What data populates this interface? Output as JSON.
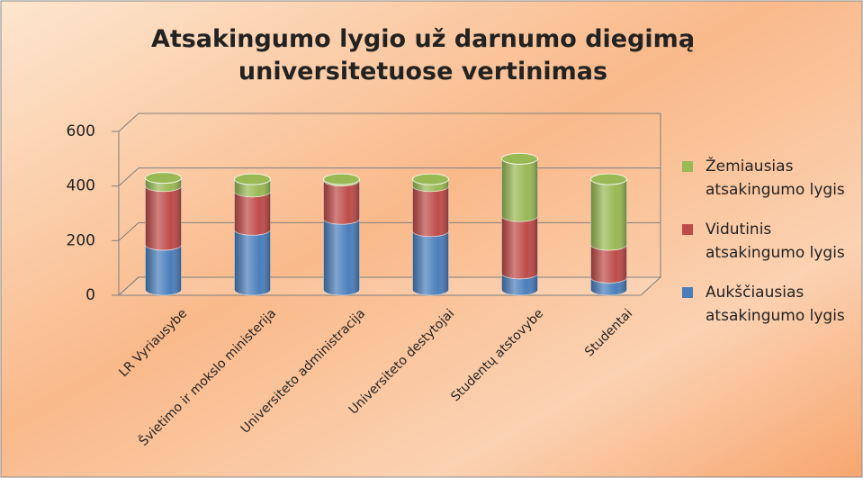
{
  "chart_data": {
    "type": "bar3d_stacked",
    "title": "Atsakingumo lygio už darnumo diegimą universitetuose vertinimas",
    "categories": [
      "LR Vyriausybe",
      "Švietimo ir mokslo ministerija",
      "Universiteto administracija",
      "Universiteto destytojai",
      "Studentų atstovybe",
      "Studentai"
    ],
    "series": [
      {
        "name": "Aukščiausias atsakingumo lygis",
        "color": "#4a7ebb",
        "values": [
          165,
          220,
          260,
          215,
          60,
          45
        ]
      },
      {
        "name": "Vidutinis atsakingumo lygis",
        "color": "#be4b48",
        "values": [
          215,
          140,
          140,
          165,
          210,
          120
        ]
      },
      {
        "name": "Žemiausias atsakingumo lygis",
        "color": "#98b954",
        "values": [
          30,
          45,
          5,
          25,
          210,
          240
        ]
      }
    ],
    "ylim": [
      0,
      600
    ],
    "yticks": [
      0,
      200,
      400,
      600
    ],
    "grid": true,
    "legend": "right"
  }
}
